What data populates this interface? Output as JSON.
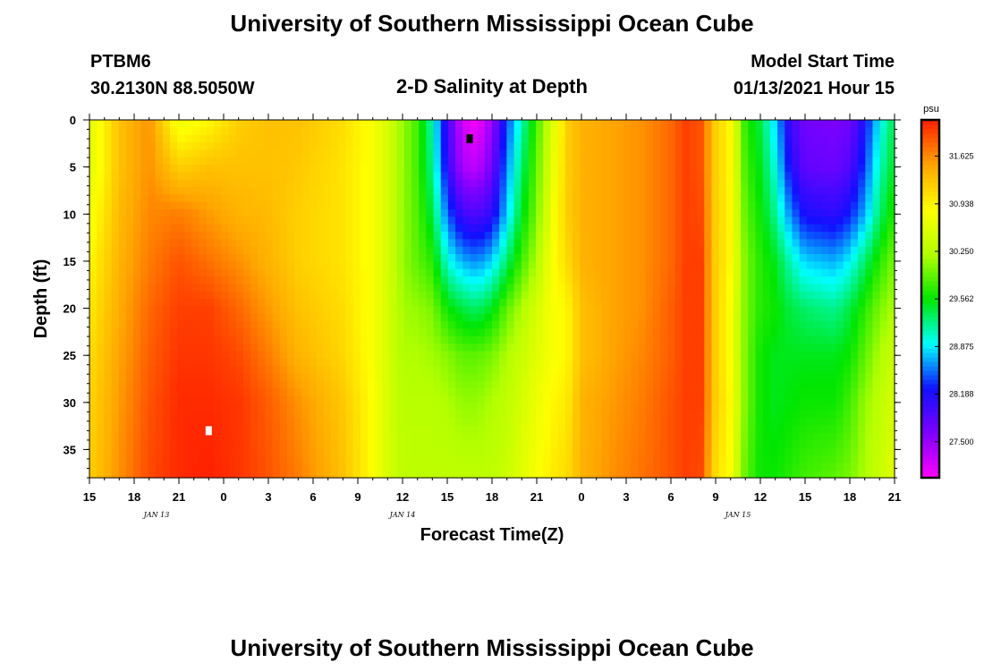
{
  "header": {
    "title": "University of Southern Mississippi Ocean Cube",
    "station": "PTBM6",
    "coords": "30.2130N 88.5050W",
    "model_label": "Model Start Time",
    "model_time": "01/13/2021 Hour 15",
    "footer_title": "University of Southern Mississippi Ocean Cube"
  },
  "colors": {
    "ramp": [
      "#ff00ff",
      "#8000ff",
      "#1010ff",
      "#00ffff",
      "#00e600",
      "#b4ff00",
      "#ffff00",
      "#ffa500",
      "#ff2000"
    ]
  },
  "chart_data": {
    "type": "heatmap",
    "title": "2-D Salinity at Depth",
    "xlabel": "Forecast Time(Z)",
    "ylabel": "Depth (ft)",
    "x_range_hours": [
      0,
      54
    ],
    "x_ticks": [
      "15",
      "18",
      "21",
      "0",
      "3",
      "6",
      "9",
      "12",
      "15",
      "18",
      "21",
      "0",
      "3",
      "6",
      "9",
      "12",
      "15",
      "18",
      "21"
    ],
    "x_tick_hours": [
      0,
      3,
      6,
      9,
      12,
      15,
      18,
      21,
      24,
      27,
      30,
      33,
      36,
      39,
      42,
      45,
      48,
      51,
      54
    ],
    "date_labels": [
      {
        "text": "JAN 13",
        "hour": 4.5
      },
      {
        "text": "JAN 14",
        "hour": 21
      },
      {
        "text": "JAN 15",
        "hour": 43.5
      }
    ],
    "ylim": [
      0,
      38
    ],
    "y_ticks": [
      0,
      5,
      10,
      15,
      20,
      25,
      30,
      35
    ],
    "colorbar": {
      "unit": "psu",
      "min": 26.98,
      "max": 32.15,
      "ticks": [
        "31.625",
        "30.938",
        "30.250",
        "29.562",
        "28.875",
        "28.188",
        "27.500"
      ],
      "tick_values": [
        31.625,
        30.938,
        30.25,
        29.562,
        28.875,
        28.188,
        27.5
      ]
    },
    "markers": [
      {
        "label": "max",
        "hour": 8,
        "depth": 33,
        "color": "#ffffff"
      },
      {
        "label": "min",
        "hour": 25.5,
        "depth": 2,
        "color": "#000000"
      }
    ],
    "salinity_profiles": {
      "depths": [
        0,
        5,
        10,
        15,
        20,
        25,
        30,
        38
      ],
      "columns": [
        {
          "hour": 0,
          "values": [
            30.6,
            30.6,
            30.75,
            30.9,
            31.0,
            31.1,
            31.15,
            31.2
          ]
        },
        {
          "hour": 2,
          "values": [
            31.3,
            31.3,
            31.35,
            31.4,
            31.45,
            31.5,
            31.55,
            31.6
          ]
        },
        {
          "hour": 4,
          "values": [
            31.6,
            31.6,
            31.65,
            31.7,
            31.8,
            31.85,
            31.9,
            31.95
          ]
        },
        {
          "hour": 6,
          "values": [
            30.7,
            31.2,
            31.7,
            31.9,
            32.0,
            32.05,
            32.1,
            32.1
          ]
        },
        {
          "hour": 8,
          "values": [
            30.9,
            31.3,
            31.55,
            31.75,
            32.0,
            32.05,
            32.1,
            32.15
          ]
        },
        {
          "hour": 10,
          "values": [
            31.2,
            31.3,
            31.4,
            31.6,
            31.8,
            31.95,
            32.05,
            32.05
          ]
        },
        {
          "hour": 12,
          "values": [
            31.3,
            31.3,
            31.35,
            31.4,
            31.55,
            31.7,
            31.85,
            31.9
          ]
        },
        {
          "hour": 14,
          "values": [
            31.3,
            31.25,
            31.2,
            31.2,
            31.3,
            31.4,
            31.6,
            31.7
          ]
        },
        {
          "hour": 17,
          "values": [
            31.1,
            31.05,
            31.05,
            31.05,
            31.1,
            31.15,
            31.25,
            31.3
          ]
        },
        {
          "hour": 19,
          "values": [
            30.8,
            30.8,
            30.8,
            30.8,
            30.8,
            30.8,
            30.85,
            30.85
          ]
        },
        {
          "hour": 20,
          "values": [
            30.5,
            30.5,
            30.5,
            30.5,
            30.5,
            30.5,
            30.5,
            30.5
          ]
        },
        {
          "hour": 21,
          "values": [
            30.1,
            30.1,
            30.1,
            30.1,
            30.15,
            30.2,
            30.25,
            30.3
          ]
        },
        {
          "hour": 22,
          "values": [
            29.8,
            29.8,
            29.85,
            29.9,
            30.1,
            30.2,
            30.25,
            30.3
          ]
        },
        {
          "hour": 23,
          "values": [
            29.1,
            29.2,
            29.4,
            29.7,
            30.0,
            30.15,
            30.25,
            30.3
          ]
        },
        {
          "hour": 24,
          "values": [
            28.0,
            28.1,
            28.5,
            29.0,
            29.6,
            30.05,
            30.2,
            30.3
          ]
        },
        {
          "hour": 25,
          "values": [
            27.2,
            27.4,
            28.0,
            28.7,
            29.4,
            29.9,
            30.1,
            30.3
          ]
        },
        {
          "hour": 26,
          "values": [
            27.0,
            27.3,
            27.9,
            28.6,
            29.3,
            29.9,
            30.1,
            30.3
          ]
        },
        {
          "hour": 27,
          "values": [
            27.5,
            27.7,
            28.1,
            28.8,
            29.5,
            30.0,
            30.2,
            30.3
          ]
        },
        {
          "hour": 28,
          "values": [
            28.4,
            28.6,
            28.8,
            29.3,
            29.9,
            30.2,
            30.3,
            30.4
          ]
        },
        {
          "hour": 29,
          "values": [
            29.1,
            29.3,
            29.5,
            29.8,
            30.2,
            30.4,
            30.5,
            30.6
          ]
        },
        {
          "hour": 30,
          "values": [
            29.8,
            29.9,
            30.0,
            30.2,
            30.5,
            30.6,
            30.7,
            30.8
          ]
        },
        {
          "hour": 31,
          "values": [
            30.5,
            30.6,
            30.7,
            30.8,
            30.8,
            30.8,
            30.9,
            31.0
          ]
        },
        {
          "hour": 32,
          "values": [
            31.2,
            31.2,
            31.2,
            31.1,
            30.9,
            30.9,
            31.0,
            31.1
          ]
        },
        {
          "hour": 33,
          "values": [
            31.4,
            31.4,
            31.4,
            31.4,
            31.3,
            31.3,
            31.4,
            31.4
          ]
        },
        {
          "hour": 35,
          "values": [
            31.5,
            31.5,
            31.5,
            31.5,
            31.5,
            31.5,
            31.55,
            31.6
          ]
        },
        {
          "hour": 37,
          "values": [
            31.6,
            31.6,
            31.6,
            31.6,
            31.6,
            31.65,
            31.7,
            31.75
          ]
        },
        {
          "hour": 39,
          "values": [
            31.8,
            31.8,
            31.8,
            31.8,
            31.85,
            31.85,
            31.9,
            31.9
          ]
        },
        {
          "hour": 40,
          "values": [
            32.0,
            32.0,
            32.0,
            32.0,
            32.0,
            32.0,
            32.0,
            32.0
          ]
        },
        {
          "hour": 41,
          "values": [
            31.9,
            31.9,
            31.95,
            32.0,
            32.0,
            32.0,
            32.0,
            31.95
          ]
        },
        {
          "hour": 42,
          "values": [
            31.2,
            31.2,
            31.2,
            31.2,
            31.2,
            31.2,
            31.2,
            31.1
          ]
        },
        {
          "hour": 43,
          "values": [
            30.9,
            30.9,
            30.9,
            30.9,
            30.8,
            30.8,
            30.9,
            30.8
          ]
        },
        {
          "hour": 44,
          "values": [
            29.7,
            29.8,
            29.9,
            30.0,
            30.0,
            30.0,
            30.0,
            29.9
          ]
        },
        {
          "hour": 45,
          "values": [
            29.4,
            29.5,
            29.6,
            29.7,
            29.7,
            29.6,
            29.6,
            29.6
          ]
        },
        {
          "hour": 46,
          "values": [
            28.8,
            29.0,
            29.2,
            29.5,
            29.6,
            29.5,
            29.5,
            29.6
          ]
        },
        {
          "hour": 47,
          "values": [
            28.0,
            28.2,
            28.6,
            29.1,
            29.4,
            29.5,
            29.55,
            29.7
          ]
        },
        {
          "hour": 48,
          "values": [
            27.7,
            27.8,
            28.2,
            28.8,
            29.3,
            29.5,
            29.6,
            29.8
          ]
        },
        {
          "hour": 50,
          "values": [
            27.65,
            27.75,
            28.1,
            28.7,
            29.2,
            29.5,
            29.6,
            29.9
          ]
        },
        {
          "hour": 51,
          "values": [
            27.7,
            27.9,
            28.3,
            28.9,
            29.4,
            29.6,
            29.8,
            30.0
          ]
        },
        {
          "hour": 52,
          "values": [
            28.2,
            28.4,
            28.7,
            29.3,
            29.7,
            29.9,
            30.1,
            30.2
          ]
        },
        {
          "hour": 53,
          "values": [
            28.9,
            29.1,
            29.3,
            29.7,
            30.0,
            30.2,
            30.3,
            30.4
          ]
        },
        {
          "hour": 54,
          "values": [
            29.4,
            29.5,
            29.7,
            30.0,
            30.2,
            30.4,
            30.5,
            30.6
          ]
        }
      ]
    }
  }
}
